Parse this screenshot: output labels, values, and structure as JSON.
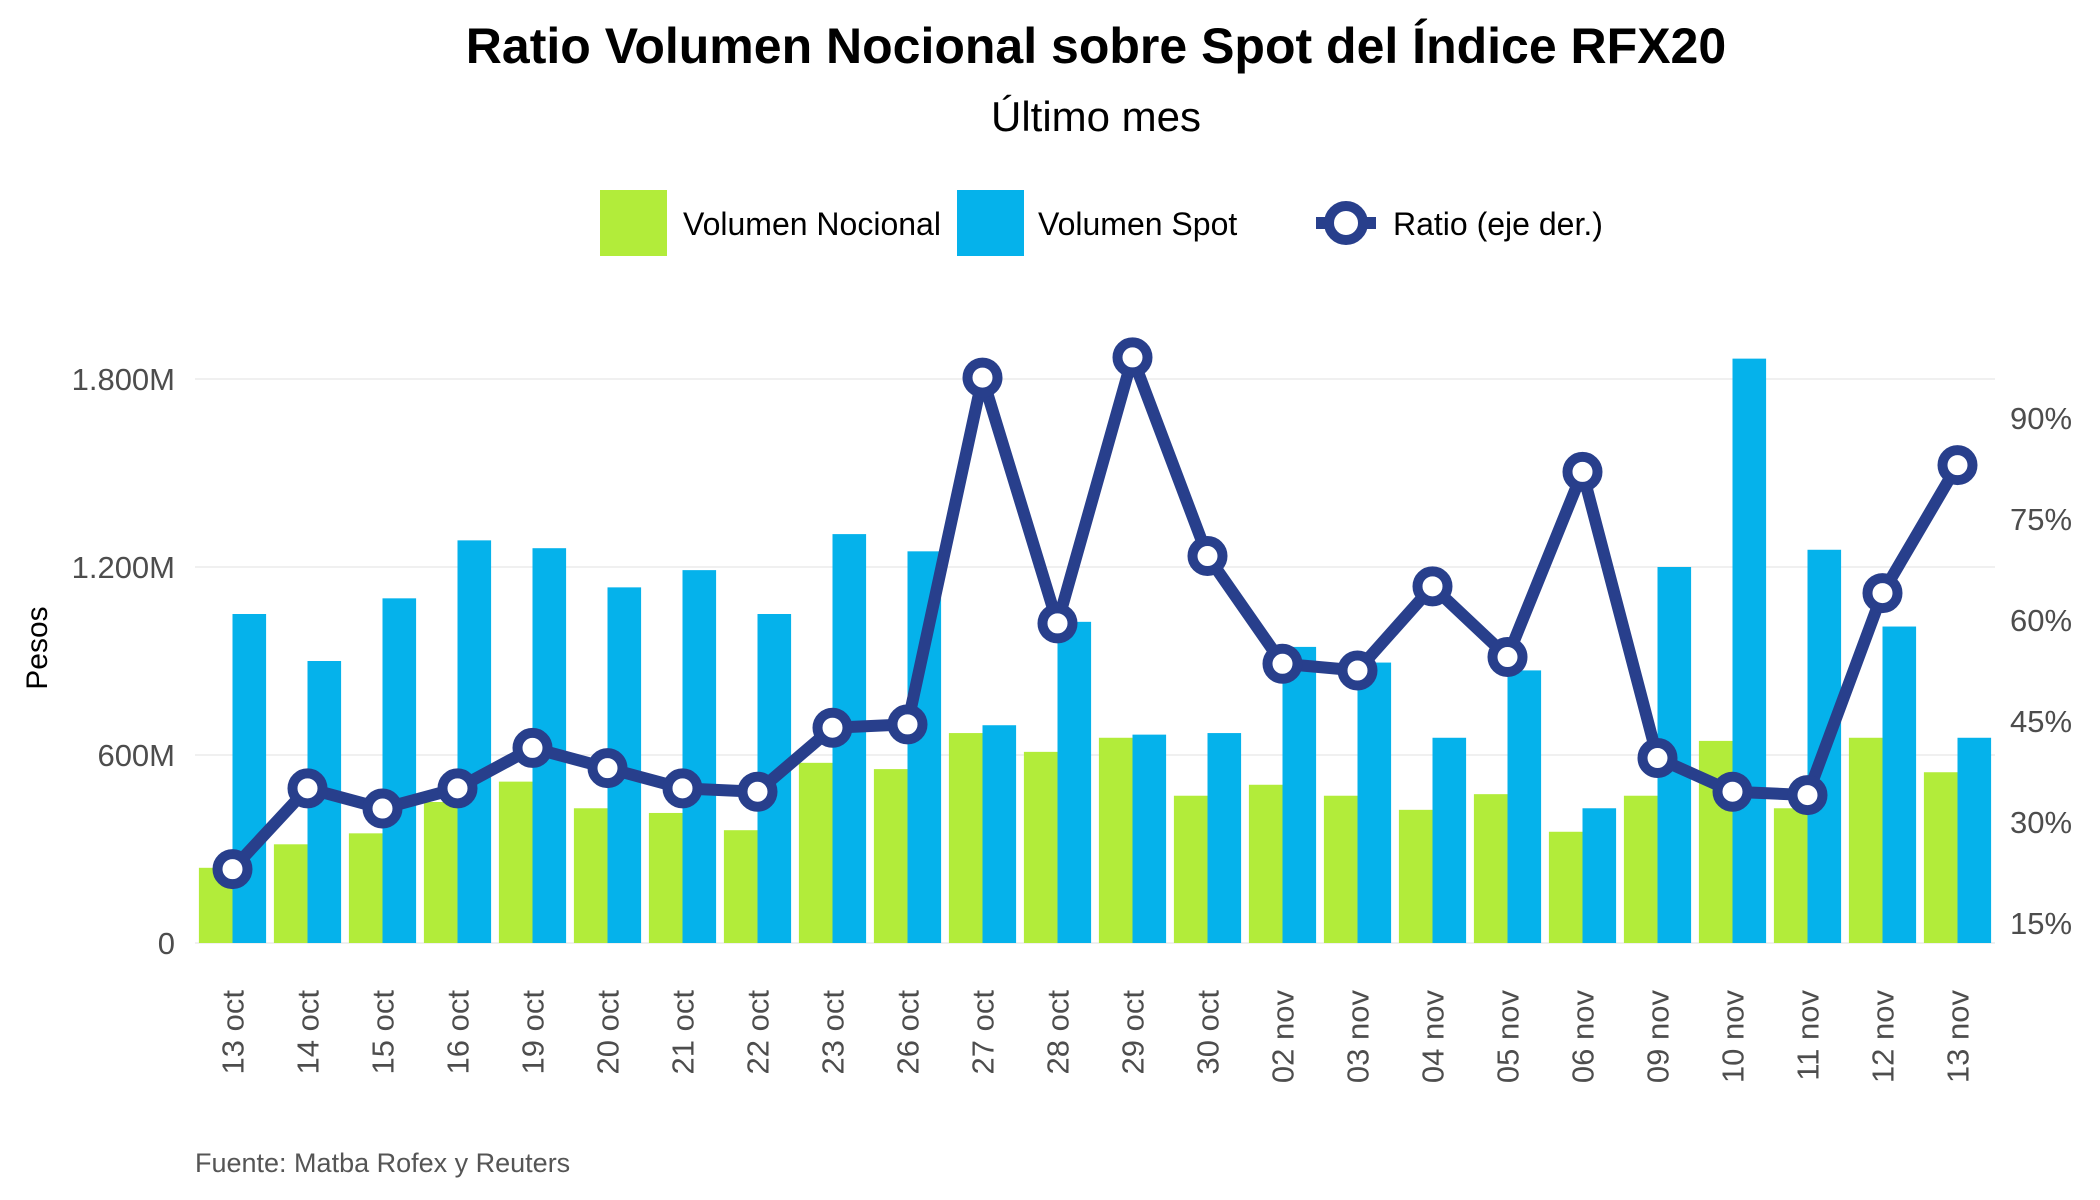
{
  "chart_data": {
    "type": "bar",
    "title": "Ratio Volumen Nocional sobre Spot del Índice RFX20",
    "subtitle": "Último mes",
    "ylabel": "Pesos",
    "source": "Fuente: Matba Rofex y Reuters",
    "legend_position": "top-center",
    "grid": true,
    "categories": [
      "13 oct",
      "14 oct",
      "15 oct",
      "16 oct",
      "19 oct",
      "20 oct",
      "21 oct",
      "22 oct",
      "23 oct",
      "26 oct",
      "27 oct",
      "28 oct",
      "29 oct",
      "30 oct",
      "02 nov",
      "03 nov",
      "04 nov",
      "05 nov",
      "06 nov",
      "09 nov",
      "10 nov",
      "11 nov",
      "12 nov",
      "13 nov"
    ],
    "left_axis": {
      "ylim": [
        0,
        2050
      ],
      "ticks": [
        0,
        600,
        1200,
        1800
      ],
      "tick_labels": [
        "0",
        "600M",
        "1.200M",
        "1.800M"
      ]
    },
    "right_axis": {
      "ylim": [
        9,
        100
      ],
      "ticks": [
        15,
        30,
        45,
        60,
        75,
        90
      ],
      "tick_labels": [
        "15%",
        "30%",
        "45%",
        "60%",
        "75%",
        "90%"
      ]
    },
    "series": [
      {
        "name": "Volumen Nocional",
        "type": "bar",
        "axis": "left",
        "color": "#b2ec3a",
        "values": [
          240,
          315,
          350,
          450,
          515,
          430,
          415,
          360,
          575,
          555,
          670,
          610,
          655,
          470,
          505,
          470,
          425,
          475,
          355,
          470,
          645,
          430,
          655,
          545
        ]
      },
      {
        "name": "Volumen Spot",
        "type": "bar",
        "axis": "left",
        "color": "#05b2eb",
        "values": [
          1050,
          900,
          1100,
          1285,
          1260,
          1135,
          1190,
          1050,
          1305,
          1250,
          695,
          1025,
          665,
          670,
          945,
          895,
          655,
          870,
          430,
          1200,
          1865,
          1255,
          1010,
          655
        ]
      },
      {
        "name": "Ratio (eje der.)",
        "type": "line",
        "axis": "right",
        "color": "#283f8c",
        "values": [
          23,
          35,
          32,
          35,
          41,
          38,
          35,
          34.5,
          44,
          44.5,
          96,
          59.5,
          99,
          69.5,
          53.5,
          52.5,
          65,
          54.5,
          82,
          39.5,
          34.5,
          34,
          64,
          83
        ]
      }
    ]
  }
}
